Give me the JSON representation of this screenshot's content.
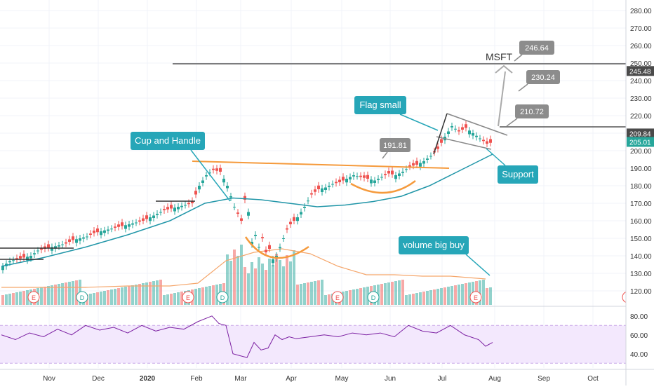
{
  "chart_data": {
    "type": "candlestick",
    "symbol": "MSFT",
    "title": "",
    "price_axis": {
      "ticks": [
        120,
        130,
        140,
        150,
        160,
        170,
        180,
        190,
        200,
        210,
        220,
        230,
        240,
        250,
        260,
        270,
        280
      ],
      "range": [
        112,
        286
      ]
    },
    "rsi_axis": {
      "ticks": [
        40,
        60,
        80
      ],
      "range": [
        25,
        88
      ],
      "bands": [
        30,
        70
      ]
    },
    "x_axis": {
      "labels": [
        "Nov",
        "Dec",
        "2020",
        "Feb",
        "Mar",
        "Apr",
        "May",
        "Jun",
        "Jul",
        "Aug",
        "Sep",
        "Oct"
      ]
    },
    "price_tags": [
      {
        "value": 245.48,
        "label": "245.48",
        "color": "#4a4a4a"
      },
      {
        "value": 209.84,
        "label": "209.84",
        "color": "#4a4a4a"
      },
      {
        "value": 205.01,
        "label": "205.01",
        "color": "#26a69a"
      }
    ],
    "callouts": [
      {
        "text": "246.64",
        "color": "#8c8c8c"
      },
      {
        "text": "230.24",
        "color": "#8c8c8c"
      },
      {
        "text": "210.72",
        "color": "#8c8c8c"
      },
      {
        "text": "191.81",
        "color": "#8c8c8c"
      },
      {
        "text": "Cup and Handle",
        "color": "#26a6b8"
      },
      {
        "text": "Flag small",
        "color": "#26a6b8"
      },
      {
        "text": "Support",
        "color": "#26a6b8"
      },
      {
        "text": "volume big buy",
        "color": "#26a6b8"
      }
    ],
    "event_markers": [
      "E",
      "D",
      "E",
      "D",
      "E",
      "D",
      "E"
    ],
    "moving_average_label": "",
    "series": [
      {
        "name": "",
        "kind": "close",
        "colors": {
          "up": "#26a69a",
          "down": "#ef5350"
        },
        "values": [
          [
            0,
            134
          ],
          [
            10,
            137
          ],
          [
            20,
            138
          ],
          [
            30,
            139
          ],
          [
            40,
            140
          ],
          [
            50,
            143
          ],
          [
            60,
            144
          ],
          [
            70,
            145
          ],
          [
            80,
            146
          ],
          [
            90,
            147
          ],
          [
            100,
            149
          ],
          [
            110,
            150
          ],
          [
            120,
            151
          ],
          [
            130,
            153
          ],
          [
            140,
            154
          ],
          [
            150,
            155
          ],
          [
            160,
            156
          ],
          [
            170,
            157
          ],
          [
            180,
            158
          ],
          [
            190,
            159
          ],
          [
            200,
            160
          ],
          [
            210,
            162
          ],
          [
            220,
            164
          ],
          [
            230,
            166
          ],
          [
            240,
            167
          ],
          [
            250,
            168
          ],
          [
            260,
            169
          ],
          [
            270,
            170
          ],
          [
            280,
            180
          ],
          [
            290,
            186
          ],
          [
            300,
            189
          ],
          [
            310,
            188
          ],
          [
            320,
            180
          ],
          [
            330,
            168
          ],
          [
            340,
            160
          ],
          [
            345,
            172
          ],
          [
            350,
            165
          ],
          [
            355,
            148
          ],
          [
            360,
            152
          ],
          [
            365,
            145
          ],
          [
            370,
            150
          ],
          [
            375,
            142
          ],
          [
            380,
            144
          ],
          [
            385,
            138
          ],
          [
            390,
            140
          ],
          [
            395,
            145
          ],
          [
            400,
            150
          ],
          [
            405,
            155
          ],
          [
            410,
            158
          ],
          [
            420,
            162
          ],
          [
            430,
            168
          ],
          [
            440,
            175
          ],
          [
            450,
            178
          ],
          [
            460,
            179
          ],
          [
            470,
            181
          ],
          [
            480,
            182
          ],
          [
            490,
            184
          ],
          [
            500,
            186
          ],
          [
            510,
            185
          ],
          [
            520,
            184
          ],
          [
            530,
            183
          ],
          [
            540,
            185
          ],
          [
            550,
            187
          ],
          [
            560,
            186
          ],
          [
            570,
            188
          ],
          [
            580,
            191
          ],
          [
            590,
            192
          ],
          [
            600,
            194
          ],
          [
            610,
            197
          ],
          [
            620,
            201
          ],
          [
            630,
            208
          ],
          [
            640,
            214
          ],
          [
            650,
            211
          ],
          [
            660,
            213
          ],
          [
            670,
            210
          ],
          [
            680,
            207
          ],
          [
            690,
            204
          ],
          [
            700,
            205
          ]
        ]
      },
      {
        "name": "",
        "kind": "moving-average",
        "values": [
          [
            0,
            134
          ],
          [
            60,
            139
          ],
          [
            120,
            145
          ],
          [
            180,
            152
          ],
          [
            240,
            160
          ],
          [
            290,
            170
          ],
          [
            330,
            173
          ],
          [
            370,
            172
          ],
          [
            410,
            170
          ],
          [
            450,
            168
          ],
          [
            490,
            169
          ],
          [
            530,
            171
          ],
          [
            570,
            174
          ],
          [
            610,
            180
          ],
          [
            650,
            188
          ],
          [
            690,
            196
          ],
          [
            700,
            198
          ]
        ]
      },
      {
        "name": "",
        "kind": "rsi",
        "values": [
          [
            0,
            60
          ],
          [
            20,
            55
          ],
          [
            40,
            62
          ],
          [
            60,
            58
          ],
          [
            80,
            66
          ],
          [
            100,
            60
          ],
          [
            120,
            70
          ],
          [
            140,
            65
          ],
          [
            160,
            68
          ],
          [
            180,
            62
          ],
          [
            200,
            70
          ],
          [
            220,
            64
          ],
          [
            240,
            68
          ],
          [
            260,
            66
          ],
          [
            280,
            74
          ],
          [
            300,
            80
          ],
          [
            310,
            72
          ],
          [
            320,
            70
          ],
          [
            330,
            40
          ],
          [
            340,
            38
          ],
          [
            350,
            36
          ],
          [
            360,
            52
          ],
          [
            370,
            44
          ],
          [
            380,
            46
          ],
          [
            390,
            60
          ],
          [
            400,
            55
          ],
          [
            410,
            58
          ],
          [
            420,
            56
          ],
          [
            440,
            58
          ],
          [
            460,
            60
          ],
          [
            480,
            58
          ],
          [
            500,
            62
          ],
          [
            520,
            60
          ],
          [
            540,
            62
          ],
          [
            560,
            58
          ],
          [
            580,
            70
          ],
          [
            600,
            64
          ],
          [
            620,
            62
          ],
          [
            640,
            70
          ],
          [
            660,
            60
          ],
          [
            680,
            55
          ],
          [
            690,
            48
          ],
          [
            700,
            52
          ]
        ]
      }
    ]
  }
}
